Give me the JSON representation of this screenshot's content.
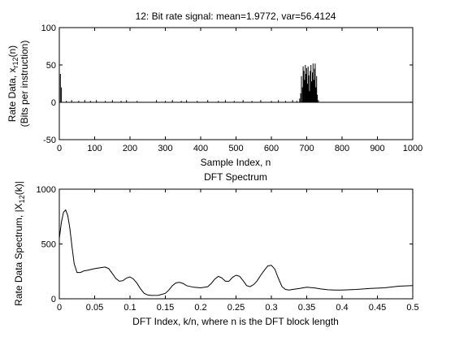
{
  "chart_data": [
    {
      "type": "line",
      "title": "12: Bit rate signal: mean=1.9772, var=56.4124",
      "xlabel": "Sample Index, n",
      "ylabel_line1": {
        "pre": "Rate Data, x",
        "sub": "r12",
        "post": "(n)"
      },
      "ylabel_line2": "(Bits per instruction)",
      "xlim": [
        0,
        1000
      ],
      "ylim": [
        -50,
        100
      ],
      "xticks": [
        0,
        100,
        200,
        300,
        400,
        500,
        600,
        700,
        800,
        900,
        1000
      ],
      "yticks": [
        -50,
        0,
        50,
        100
      ],
      "grid": false,
      "color": "#000000",
      "baseline": 0,
      "spikes": [
        [
          0,
          40
        ],
        [
          3,
          38
        ],
        [
          6,
          20
        ],
        [
          8,
          0
        ],
        [
          20,
          2
        ],
        [
          35,
          3
        ],
        [
          55,
          2
        ],
        [
          72,
          3
        ],
        [
          88,
          2
        ],
        [
          105,
          3
        ],
        [
          130,
          2
        ],
        [
          150,
          3
        ],
        [
          175,
          2
        ],
        [
          190,
          3
        ],
        [
          220,
          2
        ],
        [
          275,
          3
        ],
        [
          300,
          2
        ],
        [
          320,
          3
        ],
        [
          345,
          2
        ],
        [
          360,
          3
        ],
        [
          390,
          2
        ],
        [
          420,
          3
        ],
        [
          450,
          2
        ],
        [
          470,
          3
        ],
        [
          495,
          2
        ],
        [
          520,
          3
        ],
        [
          545,
          2
        ],
        [
          570,
          3
        ],
        [
          600,
          2
        ],
        [
          620,
          3
        ],
        [
          640,
          2
        ],
        [
          660,
          3
        ],
        [
          672,
          2
        ],
        [
          680,
          5
        ],
        [
          683,
          12
        ],
        [
          685,
          35
        ],
        [
          688,
          20
        ],
        [
          690,
          48
        ],
        [
          692,
          42
        ],
        [
          694,
          30
        ],
        [
          696,
          50
        ],
        [
          698,
          38
        ],
        [
          700,
          46
        ],
        [
          702,
          25
        ],
        [
          704,
          48
        ],
        [
          706,
          36
        ],
        [
          708,
          15
        ],
        [
          710,
          42
        ],
        [
          712,
          50
        ],
        [
          714,
          28
        ],
        [
          716,
          40
        ],
        [
          718,
          52
        ],
        [
          720,
          30
        ],
        [
          722,
          45
        ],
        [
          724,
          52
        ],
        [
          726,
          20
        ],
        [
          728,
          35
        ],
        [
          730,
          10
        ],
        [
          733,
          3
        ],
        [
          995,
          1
        ],
        [
          1000,
          1
        ]
      ]
    },
    {
      "type": "line",
      "title": "DFT Spectrum",
      "xlabel": "DFT Index, k/n, where n is the DFT block length",
      "ylabel": {
        "pre": "Rate Data Spectrum, |X",
        "sub": "12",
        "post": "(k)|"
      },
      "xlim": [
        0,
        0.5
      ],
      "ylim": [
        0,
        1000
      ],
      "xticks": [
        0,
        0.05,
        0.1,
        0.15,
        0.2,
        0.25,
        0.3,
        0.35,
        0.4,
        0.45,
        0.5
      ],
      "xtick_labels": [
        "0",
        "0.05",
        "0.1",
        "0.15",
        "0.2",
        "0.25",
        "0.3",
        "0.35",
        "0.4",
        "0.45",
        "0.5"
      ],
      "yticks": [
        0,
        500,
        1000
      ],
      "grid": false,
      "color": "#000000",
      "x": [
        0,
        0.003,
        0.006,
        0.009,
        0.012,
        0.015,
        0.018,
        0.021,
        0.025,
        0.03,
        0.035,
        0.04,
        0.05,
        0.06,
        0.065,
        0.07,
        0.075,
        0.08,
        0.085,
        0.09,
        0.095,
        0.1,
        0.105,
        0.11,
        0.115,
        0.12,
        0.125,
        0.13,
        0.14,
        0.15,
        0.155,
        0.16,
        0.165,
        0.17,
        0.175,
        0.18,
        0.19,
        0.2,
        0.21,
        0.215,
        0.22,
        0.225,
        0.23,
        0.235,
        0.24,
        0.245,
        0.25,
        0.255,
        0.26,
        0.265,
        0.27,
        0.275,
        0.28,
        0.285,
        0.29,
        0.295,
        0.3,
        0.305,
        0.31,
        0.315,
        0.32,
        0.325,
        0.33,
        0.34,
        0.35,
        0.36,
        0.37,
        0.38,
        0.39,
        0.4,
        0.42,
        0.44,
        0.46,
        0.48,
        0.5
      ],
      "y": [
        550,
        700,
        790,
        810,
        760,
        640,
        470,
        320,
        240,
        240,
        255,
        260,
        275,
        285,
        290,
        275,
        230,
        185,
        160,
        165,
        190,
        200,
        180,
        140,
        90,
        50,
        35,
        30,
        32,
        50,
        80,
        120,
        145,
        150,
        140,
        120,
        105,
        100,
        110,
        140,
        180,
        205,
        190,
        160,
        160,
        195,
        215,
        205,
        165,
        120,
        110,
        130,
        165,
        215,
        260,
        300,
        305,
        270,
        185,
        110,
        85,
        80,
        85,
        95,
        105,
        100,
        90,
        82,
        80,
        80,
        85,
        95,
        100,
        115,
        120
      ]
    }
  ]
}
